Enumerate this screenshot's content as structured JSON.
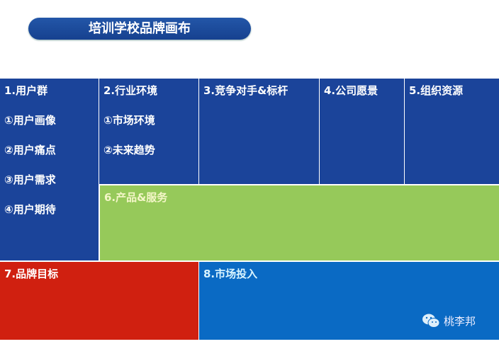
{
  "title": "培训学校品牌画布",
  "colors": {
    "navy": "#1b449a",
    "green": "#96c95a",
    "red": "#d02010",
    "blue": "#0a6ac4"
  },
  "blocks": {
    "user_group": {
      "label": "1.用户群",
      "items": [
        "①用户画像",
        "②用户痛点",
        "③用户需求",
        "④用户期待"
      ]
    },
    "industry": {
      "label": "2.行业环境",
      "items": [
        "①市场环境",
        "②未来趋势"
      ]
    },
    "competitors": {
      "label": "3.竞争对手&标杆"
    },
    "vision": {
      "label": "4.公司愿景"
    },
    "resources": {
      "label": "5.组织资源"
    },
    "product": {
      "label": "6.产品&服务"
    },
    "brand_goal": {
      "label": "7.品牌目标"
    },
    "market_investment": {
      "label": "8.市场投入"
    }
  },
  "watermark": {
    "icon": "wechat-icon",
    "text": "桃李邦"
  }
}
